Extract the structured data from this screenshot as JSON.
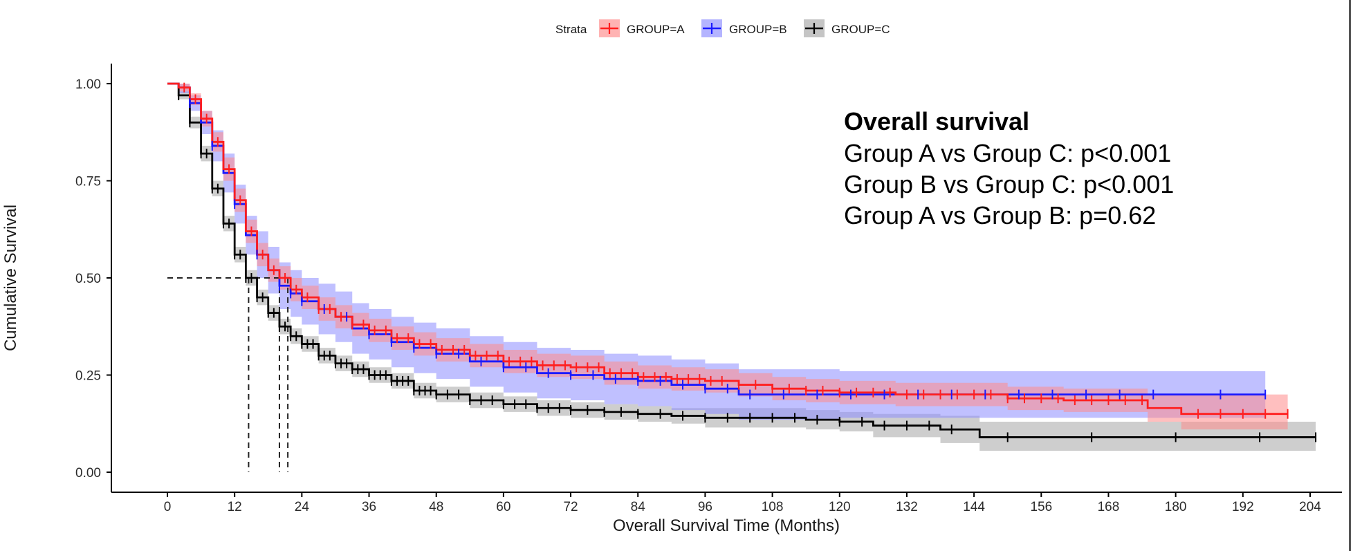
{
  "chart_data": {
    "type": "line",
    "subtype": "kaplan-meier",
    "title": "",
    "xlabel": "Overall Survival Time (Months)",
    "ylabel": "Cumulative Survival",
    "xlim": [
      0,
      206
    ],
    "ylim": [
      0,
      1.05
    ],
    "x_ticks": [
      0,
      12,
      24,
      36,
      48,
      60,
      72,
      84,
      96,
      108,
      120,
      132,
      144,
      156,
      168,
      180,
      192,
      204
    ],
    "y_ticks": [
      0.0,
      0.25,
      0.5,
      0.75,
      1.0
    ],
    "y_tick_labels": [
      "0.00",
      "0.25",
      "0.50",
      "0.75",
      "1.00"
    ],
    "legend": {
      "title": "Strata",
      "position": "top"
    },
    "annotation": {
      "title": "Overall survival",
      "lines": [
        "Group A vs Group C: p<0.001",
        "Group B vs Group C: p<0.001",
        "Group A vs Group B: p=0.62"
      ]
    },
    "median_survival": {
      "reference_y": 0.5,
      "x_values": [
        14.5,
        20,
        21.5
      ]
    },
    "series": [
      {
        "name": "GROUP=A",
        "color": "#ff1f1f",
        "fill": "#ff8a8a",
        "x": [
          0,
          2,
          4,
          6,
          8,
          10,
          12,
          14,
          16,
          18,
          20,
          22,
          24,
          27,
          30,
          33,
          36,
          40,
          44,
          48,
          54,
          60,
          66,
          72,
          78,
          84,
          90,
          96,
          102,
          108,
          114,
          120,
          130,
          140,
          150,
          160,
          170,
          175,
          181,
          200
        ],
        "y": [
          1.0,
          0.99,
          0.96,
          0.91,
          0.85,
          0.78,
          0.7,
          0.62,
          0.56,
          0.52,
          0.5,
          0.47,
          0.45,
          0.42,
          0.4,
          0.38,
          0.365,
          0.345,
          0.33,
          0.315,
          0.3,
          0.285,
          0.275,
          0.27,
          0.255,
          0.245,
          0.24,
          0.235,
          0.225,
          0.215,
          0.21,
          0.205,
          0.2,
          0.2,
          0.19,
          0.185,
          0.185,
          0.165,
          0.15,
          0.15
        ],
        "lower": [
          1.0,
          0.98,
          0.945,
          0.89,
          0.825,
          0.75,
          0.67,
          0.59,
          0.53,
          0.49,
          0.47,
          0.44,
          0.42,
          0.39,
          0.37,
          0.35,
          0.335,
          0.315,
          0.3,
          0.285,
          0.27,
          0.255,
          0.245,
          0.24,
          0.225,
          0.215,
          0.21,
          0.205,
          0.195,
          0.185,
          0.18,
          0.175,
          0.17,
          0.17,
          0.16,
          0.155,
          0.155,
          0.13,
          0.11,
          0.11
        ],
        "upper": [
          1.0,
          1.0,
          0.975,
          0.93,
          0.875,
          0.81,
          0.73,
          0.65,
          0.59,
          0.55,
          0.53,
          0.5,
          0.48,
          0.45,
          0.43,
          0.41,
          0.395,
          0.375,
          0.36,
          0.345,
          0.33,
          0.315,
          0.305,
          0.3,
          0.285,
          0.275,
          0.27,
          0.265,
          0.255,
          0.245,
          0.24,
          0.235,
          0.23,
          0.23,
          0.22,
          0.215,
          0.215,
          0.2,
          0.2,
          0.2
        ],
        "censor_x": [
          3,
          5,
          7,
          9,
          11,
          13,
          15,
          17,
          19,
          21,
          23,
          25,
          27,
          29,
          31,
          33,
          35,
          37,
          39,
          41,
          43,
          45,
          47,
          49,
          51,
          53,
          55,
          57,
          59,
          61,
          63,
          65,
          67,
          69,
          71,
          73,
          75,
          77,
          79,
          81,
          83,
          85,
          87,
          89,
          91,
          93,
          95,
          97,
          99,
          102,
          105,
          108,
          111,
          114,
          117,
          120,
          123,
          126,
          129,
          132,
          135,
          138,
          141,
          144,
          147,
          150,
          153,
          156,
          159,
          162,
          165,
          168,
          171,
          174,
          184,
          188,
          192,
          196,
          200
        ]
      },
      {
        "name": "GROUP=B",
        "color": "#1a1aff",
        "fill": "#8c8cff",
        "x": [
          0,
          2,
          4,
          6,
          8,
          10,
          12,
          14,
          16,
          18,
          20,
          22,
          24,
          27,
          30,
          33,
          36,
          40,
          44,
          48,
          54,
          60,
          66,
          72,
          78,
          84,
          90,
          96,
          102,
          108,
          114,
          120,
          130,
          140,
          150,
          160,
          170,
          180,
          190,
          196
        ],
        "y": [
          1.0,
          0.99,
          0.95,
          0.9,
          0.84,
          0.77,
          0.69,
          0.61,
          0.56,
          0.52,
          0.48,
          0.46,
          0.44,
          0.42,
          0.4,
          0.37,
          0.355,
          0.335,
          0.32,
          0.305,
          0.285,
          0.27,
          0.255,
          0.25,
          0.24,
          0.235,
          0.225,
          0.215,
          0.2,
          0.2,
          0.2,
          0.2,
          0.2,
          0.2,
          0.2,
          0.2,
          0.2,
          0.2,
          0.2,
          0.2
        ],
        "lower": [
          1.0,
          0.975,
          0.93,
          0.87,
          0.8,
          0.72,
          0.64,
          0.56,
          0.5,
          0.46,
          0.42,
          0.4,
          0.38,
          0.355,
          0.335,
          0.305,
          0.29,
          0.27,
          0.255,
          0.24,
          0.22,
          0.205,
          0.19,
          0.185,
          0.175,
          0.17,
          0.16,
          0.15,
          0.135,
          0.135,
          0.135,
          0.14,
          0.14,
          0.14,
          0.14,
          0.14,
          0.14,
          0.14,
          0.14,
          0.14
        ],
        "upper": [
          1.0,
          1.0,
          0.97,
          0.93,
          0.88,
          0.82,
          0.74,
          0.66,
          0.62,
          0.58,
          0.54,
          0.52,
          0.5,
          0.485,
          0.465,
          0.435,
          0.42,
          0.4,
          0.385,
          0.37,
          0.35,
          0.335,
          0.32,
          0.315,
          0.305,
          0.3,
          0.29,
          0.28,
          0.265,
          0.265,
          0.265,
          0.26,
          0.26,
          0.26,
          0.26,
          0.26,
          0.26,
          0.26,
          0.26,
          0.26
        ],
        "censor_x": [
          4,
          8,
          12,
          16,
          20,
          22,
          24,
          28,
          32,
          36,
          40,
          44,
          48,
          52,
          56,
          60,
          64,
          68,
          72,
          76,
          80,
          84,
          88,
          92,
          96,
          100,
          104,
          110,
          116,
          122,
          128,
          134,
          140,
          146,
          152,
          158,
          164,
          170,
          176,
          188,
          196
        ]
      },
      {
        "name": "GROUP=C",
        "color": "#000000",
        "fill": "#a6a6a6",
        "x": [
          0,
          2,
          4,
          6,
          8,
          10,
          12,
          14,
          16,
          18,
          20,
          22,
          24,
          27,
          30,
          33,
          36,
          40,
          44,
          48,
          54,
          60,
          66,
          72,
          78,
          84,
          90,
          96,
          102,
          108,
          114,
          120,
          126,
          132,
          138,
          145,
          160,
          180,
          195,
          205
        ],
        "y": [
          1.0,
          0.97,
          0.9,
          0.82,
          0.73,
          0.64,
          0.56,
          0.5,
          0.45,
          0.41,
          0.375,
          0.35,
          0.33,
          0.3,
          0.28,
          0.265,
          0.25,
          0.235,
          0.21,
          0.2,
          0.185,
          0.175,
          0.165,
          0.16,
          0.155,
          0.15,
          0.145,
          0.14,
          0.14,
          0.14,
          0.135,
          0.13,
          0.12,
          0.12,
          0.11,
          0.09,
          0.09,
          0.09,
          0.09,
          0.09
        ],
        "lower": [
          1.0,
          0.96,
          0.885,
          0.8,
          0.71,
          0.62,
          0.54,
          0.48,
          0.43,
          0.39,
          0.355,
          0.33,
          0.31,
          0.28,
          0.26,
          0.245,
          0.23,
          0.215,
          0.19,
          0.18,
          0.165,
          0.155,
          0.145,
          0.14,
          0.135,
          0.13,
          0.125,
          0.115,
          0.115,
          0.115,
          0.11,
          0.105,
          0.09,
          0.09,
          0.075,
          0.055,
          0.055,
          0.055,
          0.055,
          0.055
        ],
        "upper": [
          1.0,
          0.98,
          0.915,
          0.84,
          0.75,
          0.66,
          0.58,
          0.52,
          0.47,
          0.43,
          0.395,
          0.37,
          0.35,
          0.32,
          0.3,
          0.285,
          0.27,
          0.255,
          0.23,
          0.22,
          0.205,
          0.195,
          0.185,
          0.18,
          0.175,
          0.17,
          0.165,
          0.165,
          0.165,
          0.165,
          0.16,
          0.155,
          0.15,
          0.15,
          0.145,
          0.13,
          0.13,
          0.13,
          0.13,
          0.13
        ],
        "censor_x": [
          2,
          4,
          6,
          7,
          8,
          9,
          10,
          11,
          12,
          13,
          14,
          15,
          16,
          17,
          18,
          19,
          20,
          21,
          22,
          23,
          24,
          25,
          26,
          27,
          28,
          29,
          30,
          31,
          32,
          33,
          34,
          35,
          36,
          37,
          38,
          39,
          40,
          41,
          42,
          43,
          44,
          45,
          46,
          47,
          48,
          50,
          52,
          54,
          56,
          58,
          60,
          62,
          64,
          66,
          68,
          70,
          72,
          75,
          78,
          81,
          84,
          88,
          92,
          96,
          100,
          104,
          108,
          112,
          116,
          120,
          124,
          128,
          132,
          136,
          140,
          150,
          165,
          180,
          195,
          205
        ]
      }
    ]
  }
}
